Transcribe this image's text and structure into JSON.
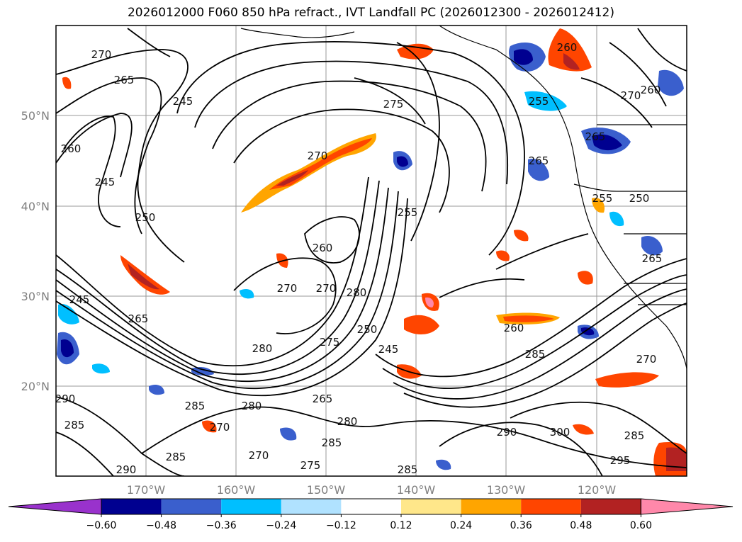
{
  "title": "2026012000 F060 850 hPa refract., IVT Landfall PC (2026012300 - 2026012412)",
  "lat_labels": [
    "50°N",
    "40°N",
    "30°N",
    "20°N"
  ],
  "lon_labels": [
    "170°W",
    "160°W",
    "150°W",
    "140°W",
    "130°W",
    "120°W"
  ],
  "contour_labels": [
    "270",
    "265",
    "260",
    "245",
    "250",
    "270",
    "260",
    "275",
    "255",
    "245",
    "260",
    "265",
    "265",
    "270",
    "255",
    "260",
    "250",
    "255",
    "265",
    "245",
    "265",
    "270",
    "270",
    "280",
    "250",
    "245",
    "260",
    "285",
    "270",
    "275",
    "280",
    "265",
    "285",
    "280",
    "280",
    "285",
    "270",
    "285",
    "290",
    "270",
    "290",
    "285",
    "300",
    "295",
    "285",
    "290",
    "275",
    "285"
  ],
  "colorbar": {
    "ticks": [
      "−0.60",
      "−0.48",
      "−0.36",
      "−0.24",
      "−0.12",
      "0.12",
      "0.24",
      "0.36",
      "0.48",
      "0.60"
    ],
    "colors": [
      "#9932cc",
      "#000090",
      "#3a5fcd",
      "#00bfff",
      "#b0e2ff",
      "#ffffff",
      "#ffe78a",
      "#ffa500",
      "#ff4500",
      "#b22222",
      "#ff88aa"
    ]
  }
}
